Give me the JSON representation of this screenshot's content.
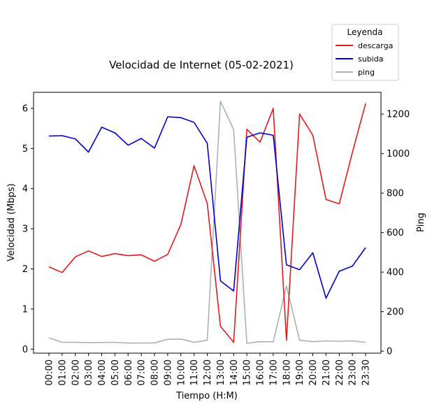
{
  "chart_data": {
    "type": "line",
    "title": "Velocidad de Internet (05-02-2021)",
    "xlabel": "Tiempo (H:M)",
    "ylabel": "Velocidad (Mbps)",
    "y2label": "Ping",
    "ylim": [
      -0.1,
      6.4
    ],
    "y2lim": [
      -10,
      1310
    ],
    "yticks": [
      0,
      1,
      2,
      3,
      4,
      5,
      6
    ],
    "y2ticks": [
      0,
      200,
      400,
      600,
      800,
      1000,
      1200
    ],
    "categories": [
      "00:00",
      "01:00",
      "02:00",
      "03:00",
      "04:00",
      "05:00",
      "06:00",
      "07:00",
      "08:00",
      "09:00",
      "10:00",
      "11:00",
      "12:00",
      "13:00",
      "14:00",
      "15:00",
      "16:00",
      "17:00",
      "18:00",
      "19:00",
      "20:00",
      "21:00",
      "22:00",
      "23:00",
      "23:30"
    ],
    "legend": {
      "title": "Leyenda",
      "placement": "top-right (outside plot)"
    },
    "grid": false,
    "series": [
      {
        "name": "descarga",
        "axis": "left",
        "color": "#e41a1c",
        "values": [
          2.05,
          1.91,
          2.3,
          2.45,
          2.31,
          2.38,
          2.33,
          2.35,
          2.19,
          2.36,
          3.11,
          4.57,
          3.63,
          0.57,
          0.17,
          5.48,
          5.16,
          6.0,
          0.22,
          5.86,
          5.33,
          3.73,
          3.62,
          4.9,
          6.12
        ]
      },
      {
        "name": "subida",
        "axis": "left",
        "color": "#0000cd",
        "values": [
          5.31,
          5.32,
          5.24,
          4.91,
          5.53,
          5.39,
          5.08,
          5.25,
          5.01,
          5.79,
          5.77,
          5.65,
          5.13,
          1.7,
          1.45,
          5.28,
          5.39,
          5.33,
          2.1,
          1.98,
          2.4,
          1.27,
          1.94,
          2.07,
          2.53
        ]
      },
      {
        "name": "ping",
        "axis": "right",
        "color": "#a8b2b8",
        "values": [
          68,
          45,
          45,
          43,
          44,
          45,
          41,
          41,
          42,
          60,
          62,
          45,
          55,
          1265,
          1120,
          40,
          48,
          47,
          330,
          55,
          48,
          52,
          50,
          52,
          45
        ]
      }
    ]
  }
}
